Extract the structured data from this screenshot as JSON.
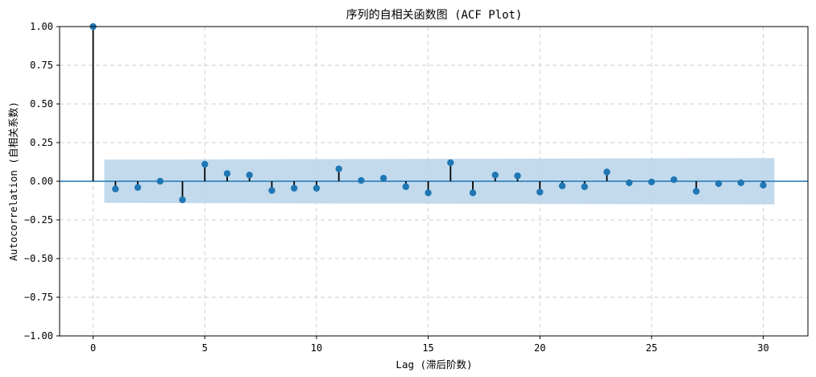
{
  "chart_data": {
    "type": "scatter",
    "subtype": "stem",
    "title": "序列的自相关函数图 (ACF Plot)",
    "xlabel": "Lag (滞后阶数)",
    "ylabel": "Autocorrelation (自相关系数)",
    "xlim": [
      -1.5,
      32
    ],
    "ylim": [
      -1.0,
      1.0
    ],
    "xticks": [
      0,
      5,
      10,
      15,
      20,
      25,
      30
    ],
    "yticks": [
      -1.0,
      -0.75,
      -0.5,
      -0.25,
      0.0,
      0.25,
      0.5,
      0.75,
      1.0
    ],
    "xtick_labels": [
      "0",
      "5",
      "10",
      "15",
      "20",
      "25",
      "30"
    ],
    "ytick_labels": [
      "−1.00",
      "−0.75",
      "−0.50",
      "−0.25",
      "0.00",
      "0.25",
      "0.50",
      "0.75",
      "1.00"
    ],
    "grid": true,
    "x": [
      0,
      1,
      2,
      3,
      4,
      5,
      6,
      7,
      8,
      9,
      10,
      11,
      12,
      13,
      14,
      15,
      16,
      17,
      18,
      19,
      20,
      21,
      22,
      23,
      24,
      25,
      26,
      27,
      28,
      29,
      30
    ],
    "values": [
      1.0,
      -0.05,
      -0.04,
      0.0,
      -0.12,
      0.11,
      0.05,
      0.04,
      -0.06,
      -0.045,
      -0.045,
      0.08,
      0.005,
      0.02,
      -0.035,
      -0.075,
      0.12,
      -0.075,
      0.04,
      0.035,
      -0.07,
      -0.03,
      -0.035,
      0.06,
      -0.01,
      -0.005,
      0.01,
      -0.065,
      -0.015,
      -0.01,
      -0.025
    ],
    "confidence_band": {
      "x": [
        0.5,
        30.5
      ],
      "upper": [
        0.14,
        0.15
      ],
      "lower": [
        -0.14,
        -0.15
      ]
    },
    "colors": {
      "marker": "#1f77b4",
      "stem": "#000000",
      "baseline": "#1f77b4",
      "band": "#b9d3ea",
      "grid": "#cccccc"
    }
  }
}
